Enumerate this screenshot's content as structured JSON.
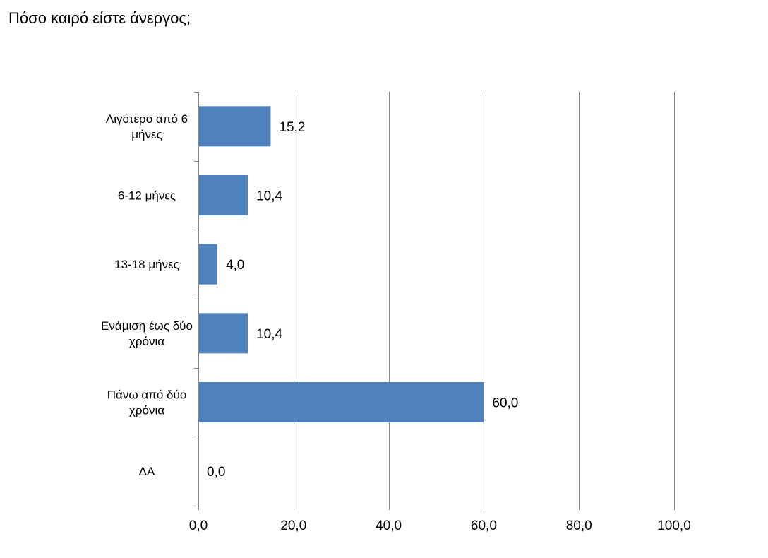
{
  "page": {
    "title": "Πόσο καιρό είστε άνεργος;"
  },
  "chart_data": {
    "type": "bar",
    "orientation": "horizontal",
    "categories": [
      [
        "Λιγότερο από 6",
        "μήνες"
      ],
      [
        "6-12 μήνες"
      ],
      [
        "13-18 μήνες"
      ],
      [
        "Ενάμιση έως δύο",
        "χρόνια"
      ],
      [
        "Πάνω από δύο",
        "χρόνια"
      ],
      [
        "ΔΑ"
      ]
    ],
    "values": [
      15.2,
      10.4,
      4.0,
      10.4,
      60.0,
      0.0
    ],
    "value_labels": [
      "15,2",
      "10,4",
      "4,0",
      "10,4",
      "60,0",
      "0,0"
    ],
    "xlim": [
      0,
      100
    ],
    "xticks": [
      0,
      20,
      40,
      60,
      80,
      100
    ],
    "xtick_labels": [
      "0,0",
      "20,0",
      "40,0",
      "60,0",
      "80,0",
      "100,0"
    ],
    "grid": true,
    "legend": "none",
    "bar_color": "#4f81bd",
    "grid_color": "#868686"
  }
}
